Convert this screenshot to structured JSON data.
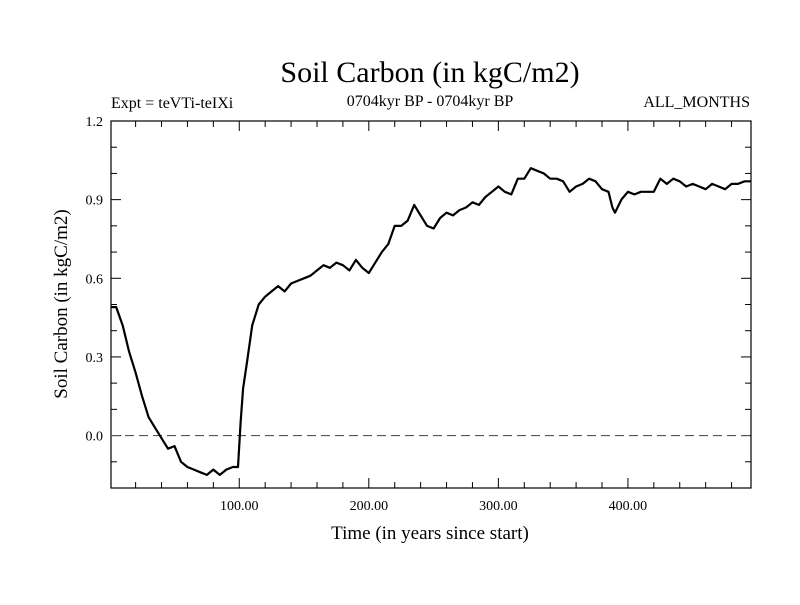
{
  "chart_data": {
    "type": "line",
    "title": "Soil Carbon (in kgC/m2)",
    "subtitle": "0704kyr BP - 0704kyr BP",
    "annotation_left": "Expt = teVTi-teIXi",
    "annotation_right": "ALL_MONTHS",
    "xlabel": "Time (in years since start)",
    "ylabel": "Soil Carbon (in kgC/m2)",
    "xlim": [
      1,
      495
    ],
    "ylim": [
      -0.2,
      1.2
    ],
    "x_ticks": [
      100,
      200,
      300,
      400
    ],
    "x_tick_labels": [
      "100.00",
      "200.00",
      "300.00",
      "400.00"
    ],
    "y_ticks": [
      0.0,
      0.3,
      0.6,
      0.9,
      1.2
    ],
    "y_tick_labels": [
      "0.0",
      "0.3",
      "0.6",
      "0.9",
      "1.2"
    ],
    "reference_line": {
      "y": 0.0,
      "style": "dashed"
    },
    "grid": false,
    "series": [
      {
        "x": [
          1,
          5,
          10,
          15,
          20,
          25,
          30,
          35,
          40,
          45,
          50,
          55,
          60,
          65,
          70,
          75,
          80,
          85,
          90,
          95,
          99,
          101,
          103,
          106,
          110,
          115,
          120,
          125,
          130,
          135,
          140,
          145,
          150,
          155,
          160,
          165,
          170,
          175,
          180,
          185,
          190,
          195,
          200,
          205,
          210,
          215,
          220,
          225,
          230,
          235,
          240,
          245,
          250,
          255,
          260,
          265,
          270,
          275,
          280,
          285,
          290,
          295,
          300,
          305,
          310,
          315,
          320,
          325,
          330,
          335,
          340,
          345,
          350,
          355,
          360,
          365,
          370,
          375,
          380,
          385,
          388,
          390,
          395,
          400,
          405,
          410,
          415,
          420,
          425,
          430,
          435,
          440,
          445,
          450,
          455,
          460,
          465,
          470,
          475,
          480,
          485,
          490,
          495
        ],
        "y": [
          0.49,
          0.49,
          0.42,
          0.32,
          0.24,
          0.15,
          0.07,
          0.03,
          -0.01,
          -0.05,
          -0.04,
          -0.1,
          -0.12,
          -0.13,
          -0.14,
          -0.15,
          -0.13,
          -0.15,
          -0.13,
          -0.12,
          -0.12,
          0.05,
          0.18,
          0.28,
          0.42,
          0.5,
          0.53,
          0.55,
          0.57,
          0.55,
          0.58,
          0.59,
          0.6,
          0.61,
          0.63,
          0.65,
          0.64,
          0.66,
          0.65,
          0.63,
          0.67,
          0.64,
          0.62,
          0.66,
          0.7,
          0.73,
          0.8,
          0.8,
          0.82,
          0.88,
          0.84,
          0.8,
          0.79,
          0.83,
          0.85,
          0.84,
          0.86,
          0.87,
          0.89,
          0.88,
          0.91,
          0.93,
          0.95,
          0.93,
          0.92,
          0.98,
          0.98,
          1.02,
          1.01,
          1.0,
          0.98,
          0.98,
          0.97,
          0.93,
          0.95,
          0.96,
          0.98,
          0.97,
          0.94,
          0.93,
          0.87,
          0.85,
          0.9,
          0.93,
          0.92,
          0.93,
          0.93,
          0.93,
          0.98,
          0.96,
          0.98,
          0.97,
          0.95,
          0.96,
          0.95,
          0.94,
          0.96,
          0.95,
          0.94,
          0.96,
          0.96,
          0.97,
          0.97
        ]
      }
    ]
  }
}
